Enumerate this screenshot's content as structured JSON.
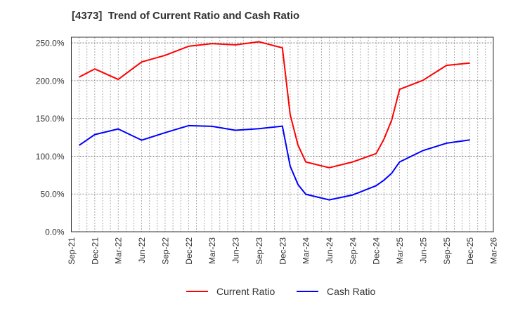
{
  "title": "[4373]  Trend of Current Ratio and Cash Ratio",
  "colors": {
    "current": "#ff0000",
    "cash": "#0000ff",
    "grid": "#999999",
    "axis": "#333333"
  },
  "legend": [
    {
      "label": "Current Ratio",
      "color": "#ff0000"
    },
    {
      "label": "Cash Ratio",
      "color": "#0000ff"
    }
  ],
  "chart_data": {
    "type": "line",
    "title": "[4373]  Trend of Current Ratio and Cash Ratio",
    "xlabel": "",
    "ylabel": "",
    "ylim": [
      0,
      257.5
    ],
    "yticks": [
      0,
      50,
      100,
      150,
      200,
      250
    ],
    "ytick_labels": [
      "0.0%",
      "50.0%",
      "100.0%",
      "150.0%",
      "200.0%",
      "250.0%"
    ],
    "xticks": [
      "Sep-21",
      "Dec-21",
      "Mar-22",
      "Jun-22",
      "Sep-22",
      "Dec-22",
      "Mar-23",
      "Jun-23",
      "Sep-23",
      "Dec-23",
      "Mar-24",
      "Jun-24",
      "Sep-24",
      "Dec-24",
      "Mar-25",
      "Jun-25",
      "Sep-25",
      "Dec-25",
      "Mar-26"
    ],
    "x_range": [
      "Sep-21",
      "Mar-26"
    ],
    "grid": true,
    "legend_position": "bottom",
    "x": [
      "Oct-21",
      "Dec-21",
      "Mar-22",
      "Jun-22",
      "Sep-22",
      "Dec-22",
      "Mar-23",
      "Jun-23",
      "Sep-23",
      "Dec-23",
      "Jan-24",
      "Feb-24",
      "Mar-24",
      "Jun-24",
      "Sep-24",
      "Dec-24",
      "Jan-25",
      "Feb-25",
      "Mar-25",
      "Jun-25",
      "Sep-25",
      "Dec-25"
    ],
    "x_month_index": [
      1,
      3,
      6,
      9,
      12,
      15,
      18,
      21,
      24,
      27,
      28,
      29,
      30,
      33,
      36,
      39,
      40,
      41,
      42,
      45,
      48,
      51
    ],
    "series": [
      {
        "name": "Current Ratio",
        "color": "#ff0000",
        "values": [
          204.7,
          215.5,
          201.6,
          224.8,
          233.5,
          245.5,
          249.0,
          247.4,
          251.5,
          243.5,
          155.0,
          114.7,
          92.4,
          84.8,
          92.4,
          103.5,
          122.5,
          147.9,
          188.5,
          200.5,
          220.2,
          223.3
        ]
      },
      {
        "name": "Cash Ratio",
        "color": "#0000ff",
        "values": [
          114.4,
          128.7,
          136.1,
          121.2,
          131.2,
          140.5,
          139.5,
          134.3,
          136.4,
          139.8,
          86.8,
          62.6,
          49.6,
          42.2,
          48.7,
          61.0,
          68.2,
          77.5,
          92.4,
          107.5,
          117.2,
          121.6
        ]
      }
    ]
  }
}
